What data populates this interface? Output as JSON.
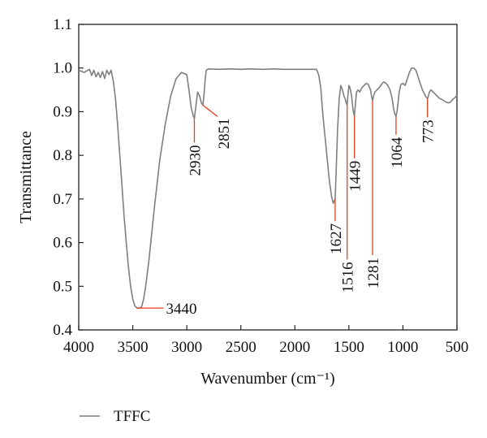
{
  "chart_data": {
    "type": "line",
    "title": "",
    "xlabel": "Wavenumber (cm⁻¹)",
    "ylabel": "Transmittance",
    "xlim": [
      4000,
      500
    ],
    "ylim": [
      0.4,
      1.1
    ],
    "x_ticks": [
      4000,
      3500,
      3000,
      2500,
      2000,
      1500,
      1000,
      500
    ],
    "x_tick_labels": [
      "4000",
      "3500",
      "3000",
      "2500",
      "2000",
      "1500",
      "1000",
      "500"
    ],
    "y_ticks": [
      0.4,
      0.5,
      0.6,
      0.7,
      0.8,
      0.9,
      1.0,
      1.1
    ],
    "y_tick_labels": [
      "0.4",
      "0.5",
      "0.6",
      "0.7",
      "0.8",
      "0.9",
      "1.0",
      "1.1"
    ],
    "grid": false,
    "legend_position": "bottom-left",
    "series": [
      {
        "name": "TFFC",
        "color": "#7f7f7f",
        "x": [
          4000,
          3950,
          3900,
          3880,
          3860,
          3840,
          3820,
          3800,
          3780,
          3760,
          3740,
          3720,
          3700,
          3680,
          3660,
          3640,
          3620,
          3600,
          3580,
          3560,
          3540,
          3520,
          3500,
          3480,
          3460,
          3440,
          3420,
          3400,
          3380,
          3350,
          3300,
          3250,
          3200,
          3150,
          3100,
          3050,
          3000,
          2980,
          2960,
          2940,
          2930,
          2915,
          2900,
          2880,
          2865,
          2851,
          2840,
          2830,
          2820,
          2800,
          2700,
          2600,
          2500,
          2400,
          2300,
          2200,
          2100,
          2000,
          1900,
          1800,
          1780,
          1760,
          1750,
          1740,
          1720,
          1700,
          1680,
          1660,
          1645,
          1635,
          1627,
          1618,
          1605,
          1590,
          1575,
          1560,
          1545,
          1535,
          1525,
          1516,
          1508,
          1500,
          1490,
          1475,
          1462,
          1449,
          1440,
          1430,
          1415,
          1400,
          1380,
          1360,
          1340,
          1320,
          1300,
          1290,
          1281,
          1272,
          1260,
          1240,
          1220,
          1200,
          1180,
          1160,
          1140,
          1120,
          1100,
          1085,
          1075,
          1064,
          1055,
          1045,
          1035,
          1020,
          1000,
          980,
          960,
          940,
          920,
          900,
          880,
          860,
          840,
          820,
          800,
          790,
          780,
          773,
          765,
          755,
          740,
          720,
          700,
          680,
          660,
          640,
          620,
          600,
          580,
          560,
          540,
          520,
          500
        ],
        "y": [
          0.995,
          0.99,
          0.997,
          0.983,
          0.995,
          0.98,
          0.99,
          0.978,
          0.992,
          0.976,
          0.995,
          0.985,
          0.995,
          0.97,
          0.93,
          0.87,
          0.8,
          0.73,
          0.66,
          0.6,
          0.545,
          0.5,
          0.47,
          0.455,
          0.45,
          0.45,
          0.452,
          0.47,
          0.5,
          0.56,
          0.68,
          0.79,
          0.87,
          0.935,
          0.975,
          0.99,
          0.985,
          0.95,
          0.91,
          0.89,
          0.885,
          0.915,
          0.945,
          0.935,
          0.92,
          0.915,
          0.94,
          0.975,
          0.995,
          0.998,
          0.997,
          0.998,
          0.997,
          0.998,
          0.997,
          0.998,
          0.997,
          0.997,
          0.997,
          0.997,
          0.985,
          0.955,
          0.92,
          0.89,
          0.84,
          0.79,
          0.74,
          0.705,
          0.69,
          0.695,
          0.7,
          0.76,
          0.86,
          0.93,
          0.96,
          0.95,
          0.935,
          0.93,
          0.92,
          0.915,
          0.94,
          0.96,
          0.955,
          0.935,
          0.905,
          0.89,
          0.915,
          0.945,
          0.95,
          0.945,
          0.955,
          0.96,
          0.965,
          0.962,
          0.95,
          0.935,
          0.925,
          0.935,
          0.945,
          0.95,
          0.955,
          0.962,
          0.968,
          0.966,
          0.96,
          0.95,
          0.93,
          0.905,
          0.895,
          0.89,
          0.9,
          0.92,
          0.945,
          0.962,
          0.965,
          0.96,
          0.975,
          0.99,
          1.0,
          1.0,
          0.995,
          0.98,
          0.965,
          0.95,
          0.94,
          0.935,
          0.932,
          0.93,
          0.935,
          0.945,
          0.95,
          0.945,
          0.94,
          0.935,
          0.93,
          0.928,
          0.925,
          0.922,
          0.92,
          0.922,
          0.928,
          0.932,
          0.937
        ]
      }
    ],
    "annotations": [
      {
        "label": "3440",
        "x": 3440,
        "y": 0.45
      },
      {
        "label": "2930",
        "x": 2930,
        "y": 0.885
      },
      {
        "label": "2851",
        "x": 2851,
        "y": 0.915
      },
      {
        "label": "1627",
        "x": 1627,
        "y": 0.7
      },
      {
        "label": "1516",
        "x": 1516,
        "y": 0.915
      },
      {
        "label": "1449",
        "x": 1449,
        "y": 0.89
      },
      {
        "label": "1281",
        "x": 1281,
        "y": 0.925
      },
      {
        "label": "1064",
        "x": 1064,
        "y": 0.89
      },
      {
        "label": "773",
        "x": 773,
        "y": 0.93
      }
    ],
    "annotation_color": "#e8401c"
  }
}
